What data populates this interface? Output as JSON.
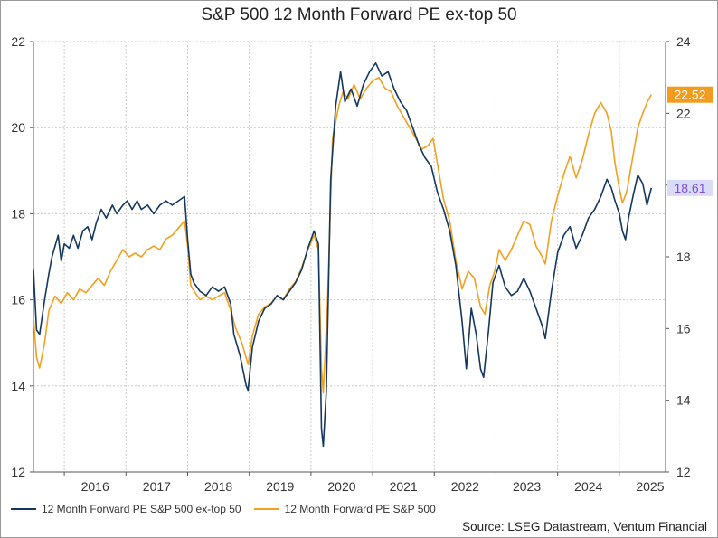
{
  "chart_data": {
    "type": "line",
    "title": "S&P 500 12 Month Forward PE ex-top 50",
    "source": "Source: LSEG Datastream, Ventum Financial",
    "x_tick_labels": [
      "2016",
      "2017",
      "2018",
      "2019",
      "2020",
      "2021",
      "2022",
      "2023",
      "2024",
      "2025"
    ],
    "x_range": [
      2015.5,
      2025.75
    ],
    "left_axis": {
      "ylim": [
        12,
        22
      ],
      "ticks": [
        12,
        14,
        16,
        18,
        20,
        22
      ]
    },
    "right_axis": {
      "ylim": [
        12,
        24
      ],
      "ticks": [
        12,
        14,
        16,
        18,
        20,
        22,
        24
      ]
    },
    "grid": true,
    "legend_position": "bottom-left",
    "series": [
      {
        "name": "12 Month Forward PE S&P 500 ex-top 50",
        "axis": "left",
        "color": "#14375f",
        "last_value_label": "18.61",
        "label_bg": "#d9dbf7",
        "label_color": "#7e4fd1",
        "points": [
          [
            2015.5,
            16.7
          ],
          [
            2015.55,
            15.3
          ],
          [
            2015.6,
            15.2
          ],
          [
            2015.68,
            16.0
          ],
          [
            2015.75,
            16.6
          ],
          [
            2015.8,
            17.0
          ],
          [
            2015.9,
            17.5
          ],
          [
            2015.95,
            16.9
          ],
          [
            2016.0,
            17.3
          ],
          [
            2016.08,
            17.2
          ],
          [
            2016.15,
            17.5
          ],
          [
            2016.22,
            17.2
          ],
          [
            2016.3,
            17.6
          ],
          [
            2016.38,
            17.7
          ],
          [
            2016.45,
            17.4
          ],
          [
            2016.52,
            17.8
          ],
          [
            2016.6,
            18.1
          ],
          [
            2016.68,
            17.9
          ],
          [
            2016.78,
            18.2
          ],
          [
            2016.85,
            18.0
          ],
          [
            2016.95,
            18.2
          ],
          [
            2017.02,
            18.3
          ],
          [
            2017.1,
            18.1
          ],
          [
            2017.18,
            18.3
          ],
          [
            2017.25,
            18.1
          ],
          [
            2017.35,
            18.2
          ],
          [
            2017.45,
            18.0
          ],
          [
            2017.55,
            18.2
          ],
          [
            2017.65,
            18.3
          ],
          [
            2017.75,
            18.2
          ],
          [
            2017.85,
            18.3
          ],
          [
            2017.95,
            18.4
          ],
          [
            2018.0,
            17.4
          ],
          [
            2018.05,
            16.6
          ],
          [
            2018.1,
            16.4
          ],
          [
            2018.2,
            16.2
          ],
          [
            2018.3,
            16.1
          ],
          [
            2018.4,
            16.3
          ],
          [
            2018.5,
            16.2
          ],
          [
            2018.6,
            16.3
          ],
          [
            2018.7,
            15.9
          ],
          [
            2018.75,
            15.2
          ],
          [
            2018.85,
            14.7
          ],
          [
            2018.95,
            14.0
          ],
          [
            2018.98,
            13.9
          ],
          [
            2019.05,
            14.9
          ],
          [
            2019.15,
            15.5
          ],
          [
            2019.25,
            15.8
          ],
          [
            2019.35,
            15.9
          ],
          [
            2019.45,
            16.1
          ],
          [
            2019.55,
            16.0
          ],
          [
            2019.65,
            16.2
          ],
          [
            2019.75,
            16.4
          ],
          [
            2019.85,
            16.7
          ],
          [
            2019.95,
            17.2
          ],
          [
            2020.05,
            17.6
          ],
          [
            2020.12,
            17.3
          ],
          [
            2020.17,
            13.0
          ],
          [
            2020.2,
            12.6
          ],
          [
            2020.25,
            13.9
          ],
          [
            2020.32,
            18.8
          ],
          [
            2020.4,
            20.5
          ],
          [
            2020.48,
            21.3
          ],
          [
            2020.55,
            20.6
          ],
          [
            2020.65,
            20.9
          ],
          [
            2020.75,
            20.5
          ],
          [
            2020.85,
            21.0
          ],
          [
            2020.95,
            21.3
          ],
          [
            2021.05,
            21.5
          ],
          [
            2021.15,
            21.2
          ],
          [
            2021.25,
            21.3
          ],
          [
            2021.35,
            20.9
          ],
          [
            2021.45,
            20.6
          ],
          [
            2021.55,
            20.4
          ],
          [
            2021.65,
            20.0
          ],
          [
            2021.75,
            19.6
          ],
          [
            2021.85,
            19.3
          ],
          [
            2021.95,
            19.1
          ],
          [
            2022.05,
            18.5
          ],
          [
            2022.15,
            18.1
          ],
          [
            2022.25,
            17.6
          ],
          [
            2022.35,
            16.8
          ],
          [
            2022.45,
            15.5
          ],
          [
            2022.52,
            14.4
          ],
          [
            2022.6,
            15.8
          ],
          [
            2022.68,
            15.2
          ],
          [
            2022.75,
            14.4
          ],
          [
            2022.8,
            14.2
          ],
          [
            2022.88,
            15.3
          ],
          [
            2022.95,
            16.4
          ],
          [
            2023.05,
            16.8
          ],
          [
            2023.15,
            16.3
          ],
          [
            2023.25,
            16.1
          ],
          [
            2023.35,
            16.2
          ],
          [
            2023.45,
            16.5
          ],
          [
            2023.55,
            16.2
          ],
          [
            2023.65,
            15.8
          ],
          [
            2023.75,
            15.4
          ],
          [
            2023.8,
            15.1
          ],
          [
            2023.9,
            16.2
          ],
          [
            2024.0,
            17.1
          ],
          [
            2024.1,
            17.5
          ],
          [
            2024.2,
            17.7
          ],
          [
            2024.3,
            17.2
          ],
          [
            2024.4,
            17.5
          ],
          [
            2024.5,
            17.9
          ],
          [
            2024.6,
            18.1
          ],
          [
            2024.7,
            18.4
          ],
          [
            2024.8,
            18.8
          ],
          [
            2024.87,
            18.6
          ],
          [
            2024.93,
            18.3
          ],
          [
            2025.0,
            18.0
          ],
          [
            2025.05,
            17.6
          ],
          [
            2025.1,
            17.4
          ],
          [
            2025.15,
            17.9
          ],
          [
            2025.22,
            18.4
          ],
          [
            2025.3,
            18.9
          ],
          [
            2025.38,
            18.7
          ],
          [
            2025.45,
            18.2
          ],
          [
            2025.52,
            18.6
          ]
        ]
      },
      {
        "name": "12 Month Forward PE S&P 500",
        "axis": "right",
        "color": "#f2a020",
        "last_value_label": "22.52",
        "label_bg": "#f29b1c",
        "label_color": "#ffffff",
        "points": [
          [
            2015.5,
            16.3
          ],
          [
            2015.55,
            15.2
          ],
          [
            2015.6,
            14.9
          ],
          [
            2015.68,
            15.6
          ],
          [
            2015.75,
            16.5
          ],
          [
            2015.85,
            16.9
          ],
          [
            2015.95,
            16.7
          ],
          [
            2016.05,
            17.0
          ],
          [
            2016.15,
            16.8
          ],
          [
            2016.25,
            17.1
          ],
          [
            2016.35,
            17.0
          ],
          [
            2016.45,
            17.2
          ],
          [
            2016.55,
            17.4
          ],
          [
            2016.65,
            17.2
          ],
          [
            2016.75,
            17.6
          ],
          [
            2016.85,
            17.9
          ],
          [
            2016.95,
            18.2
          ],
          [
            2017.05,
            18.0
          ],
          [
            2017.15,
            18.1
          ],
          [
            2017.25,
            18.0
          ],
          [
            2017.35,
            18.2
          ],
          [
            2017.45,
            18.3
          ],
          [
            2017.55,
            18.2
          ],
          [
            2017.65,
            18.5
          ],
          [
            2017.75,
            18.6
          ],
          [
            2017.85,
            18.8
          ],
          [
            2017.95,
            19.0
          ],
          [
            2018.0,
            18.3
          ],
          [
            2018.05,
            17.2
          ],
          [
            2018.12,
            17.0
          ],
          [
            2018.2,
            16.8
          ],
          [
            2018.3,
            16.9
          ],
          [
            2018.4,
            16.8
          ],
          [
            2018.5,
            16.9
          ],
          [
            2018.6,
            17.0
          ],
          [
            2018.7,
            16.5
          ],
          [
            2018.78,
            16.0
          ],
          [
            2018.88,
            15.6
          ],
          [
            2018.98,
            15.0
          ],
          [
            2019.05,
            15.8
          ],
          [
            2019.15,
            16.4
          ],
          [
            2019.25,
            16.6
          ],
          [
            2019.35,
            16.7
          ],
          [
            2019.45,
            16.9
          ],
          [
            2019.55,
            16.8
          ],
          [
            2019.65,
            17.1
          ],
          [
            2019.75,
            17.3
          ],
          [
            2019.85,
            17.7
          ],
          [
            2019.95,
            18.2
          ],
          [
            2020.05,
            18.6
          ],
          [
            2020.12,
            18.2
          ],
          [
            2020.17,
            14.9
          ],
          [
            2020.2,
            14.2
          ],
          [
            2020.27,
            16.8
          ],
          [
            2020.35,
            21.3
          ],
          [
            2020.45,
            22.2
          ],
          [
            2020.52,
            22.6
          ],
          [
            2020.6,
            22.4
          ],
          [
            2020.7,
            22.8
          ],
          [
            2020.8,
            22.4
          ],
          [
            2020.9,
            22.7
          ],
          [
            2021.0,
            22.9
          ],
          [
            2021.1,
            23.0
          ],
          [
            2021.2,
            22.7
          ],
          [
            2021.3,
            22.6
          ],
          [
            2021.4,
            22.2
          ],
          [
            2021.5,
            21.9
          ],
          [
            2021.6,
            21.6
          ],
          [
            2021.7,
            21.3
          ],
          [
            2021.8,
            21.0
          ],
          [
            2021.9,
            21.1
          ],
          [
            2021.98,
            21.3
          ],
          [
            2022.05,
            20.6
          ],
          [
            2022.15,
            19.6
          ],
          [
            2022.25,
            19.0
          ],
          [
            2022.35,
            17.9
          ],
          [
            2022.45,
            17.1
          ],
          [
            2022.55,
            17.6
          ],
          [
            2022.65,
            17.4
          ],
          [
            2022.75,
            16.6
          ],
          [
            2022.82,
            16.4
          ],
          [
            2022.9,
            17.2
          ],
          [
            2022.98,
            17.6
          ],
          [
            2023.05,
            18.2
          ],
          [
            2023.15,
            17.9
          ],
          [
            2023.25,
            18.2
          ],
          [
            2023.35,
            18.6
          ],
          [
            2023.45,
            19.0
          ],
          [
            2023.55,
            18.9
          ],
          [
            2023.65,
            18.3
          ],
          [
            2023.75,
            18.0
          ],
          [
            2023.8,
            17.8
          ],
          [
            2023.9,
            19.0
          ],
          [
            2024.0,
            19.7
          ],
          [
            2024.1,
            20.3
          ],
          [
            2024.2,
            20.8
          ],
          [
            2024.3,
            20.2
          ],
          [
            2024.4,
            20.7
          ],
          [
            2024.5,
            21.4
          ],
          [
            2024.6,
            22.0
          ],
          [
            2024.7,
            22.3
          ],
          [
            2024.8,
            22.0
          ],
          [
            2024.87,
            21.5
          ],
          [
            2024.93,
            20.6
          ],
          [
            2025.0,
            19.9
          ],
          [
            2025.05,
            19.5
          ],
          [
            2025.12,
            19.8
          ],
          [
            2025.2,
            20.6
          ],
          [
            2025.3,
            21.6
          ],
          [
            2025.38,
            22.0
          ],
          [
            2025.45,
            22.3
          ],
          [
            2025.52,
            22.52
          ]
        ]
      }
    ]
  }
}
